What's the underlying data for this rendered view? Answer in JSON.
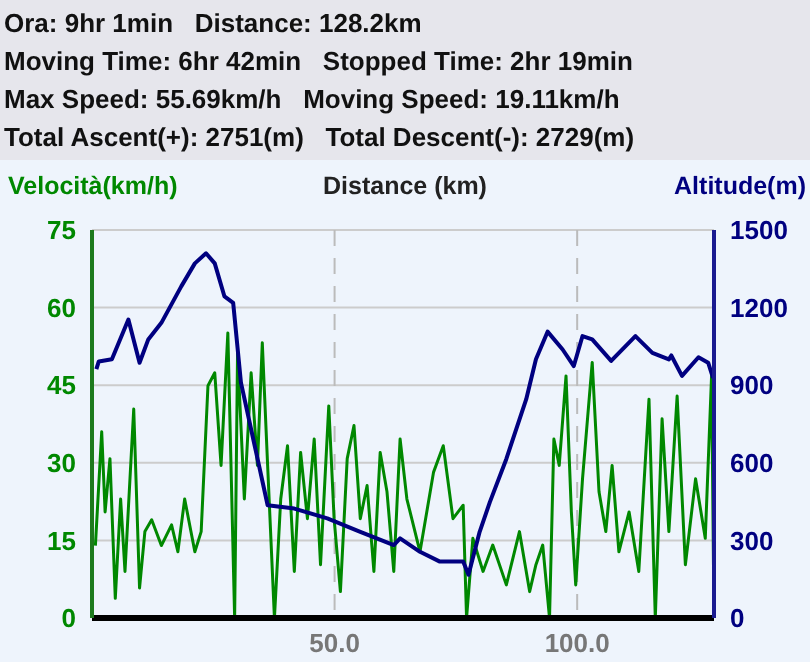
{
  "chart_data": {
    "type": "line",
    "annotations": [
      "Ora: 9hr 1min   Distance: 128.2km",
      "Moving Time: 6hr 42min   Stopped Time: 2hr 19min",
      "Max Speed: 55.69km/h   Moving Speed: 19.11km/h",
      "Total Ascent(+): 2751(m)   Total Descent(-): 2729(m)"
    ],
    "xlabel": "Distance (km)",
    "ylabel": "Velocità(km/h)",
    "y2label": "Altitude(m)",
    "xlim": [
      0,
      128.2
    ],
    "xticks": [
      {
        "value": 50,
        "label": "50.0"
      },
      {
        "value": 100,
        "label": "100.0"
      }
    ],
    "ylim": [
      0,
      75
    ],
    "yticks": [
      0,
      15,
      30,
      45,
      60,
      75
    ],
    "y2lim": [
      0,
      1500
    ],
    "y2ticks": [
      0,
      300,
      600,
      900,
      1200,
      1500
    ],
    "grid": true,
    "legend": false,
    "line_style": "solid",
    "marker": "none",
    "series": [
      {
        "color": "#008800",
        "axis": "y",
        "x": [
          0.7,
          2.0,
          2.7,
          3.7,
          4.8,
          5.9,
          6.8,
          8.6,
          9.8,
          10.9,
          12.3,
          14.3,
          16.4,
          17.7,
          19.1,
          21.2,
          22.5,
          23.9,
          25.3,
          26.6,
          28,
          29.4,
          30,
          31.4,
          32.8,
          34.1,
          35.1,
          36.2,
          37.6,
          38.9,
          40.3,
          41.7,
          43,
          44.4,
          45.8,
          47.1,
          48.8,
          49.9,
          51.2,
          52.6,
          54,
          55.3,
          56.7,
          58.1,
          59.4,
          60.8,
          62.2,
          63.5,
          64.9,
          67.6,
          70.4,
          72.4,
          74.4,
          76.5,
          77.2,
          78.5,
          80.6,
          82.6,
          85.4,
          88.1,
          90.2,
          91.5,
          92.9,
          94.3,
          95.2,
          96.3,
          97.7,
          98.8,
          99.7,
          101.1,
          103.1,
          104.5,
          105.9,
          107.2,
          108.6,
          110.7,
          112.7,
          114.8,
          116.1,
          117.5,
          118.9,
          120.6,
          122.3,
          124.4,
          126.4,
          127.7,
          128.2
        ],
        "values": [
          14,
          36,
          20.5,
          30.8,
          3.8,
          23,
          9,
          40.4,
          5.8,
          16.7,
          19,
          14,
          18,
          12.8,
          23,
          12.8,
          16.7,
          44.9,
          47.4,
          29.5,
          55.1,
          0,
          51.3,
          23,
          47.4,
          29.5,
          53.2,
          29.5,
          0,
          23,
          33.3,
          9,
          32,
          19.2,
          34.6,
          10.3,
          41,
          19.2,
          5.1,
          30.8,
          37.2,
          19.2,
          25.6,
          9,
          32,
          24.4,
          9,
          34.6,
          23,
          12.8,
          28.2,
          33.3,
          19.2,
          21.8,
          0,
          15.4,
          9,
          14.1,
          6.4,
          16.7,
          5.1,
          10.3,
          14.1,
          0,
          34.6,
          29.5,
          46.8,
          20.5,
          6.4,
          26.9,
          49.4,
          24.4,
          16.7,
          29.5,
          12.8,
          20.5,
          9,
          42.3,
          0,
          38.5,
          16.7,
          42.9,
          10.3,
          26.9,
          15.4,
          46.8,
          0
        ]
      },
      {
        "color": "#000080",
        "axis": "y2",
        "x": [
          0.9,
          1.4,
          4.1,
          7.5,
          9.8,
          11.6,
          14.3,
          18.4,
          21.2,
          23.5,
          25.3,
          27.3,
          29.1,
          30.7,
          33.5,
          36.2,
          41.7,
          48.5,
          55.3,
          62.2,
          63.5,
          67.6,
          71.7,
          76.5,
          77.6,
          79.9,
          82,
          85.4,
          89.5,
          91.5,
          93.9,
          97,
          99.3,
          101.1,
          103.1,
          107,
          112,
          115.5,
          118.9,
          119.4,
          121.6,
          125,
          127,
          128
        ],
        "values": [
          962,
          992,
          1000,
          1154,
          987,
          1077,
          1141,
          1282,
          1371,
          1410,
          1371,
          1243,
          1218,
          910,
          669,
          436,
          423,
          385,
          333,
          282,
          308,
          256,
          218,
          218,
          167,
          333,
          448,
          615,
          846,
          1000,
          1107,
          1038,
          974,
          1090,
          1077,
          994,
          1090,
          1025,
          1000,
          1015,
          936,
          1008,
          987,
          928
        ]
      }
    ]
  }
}
